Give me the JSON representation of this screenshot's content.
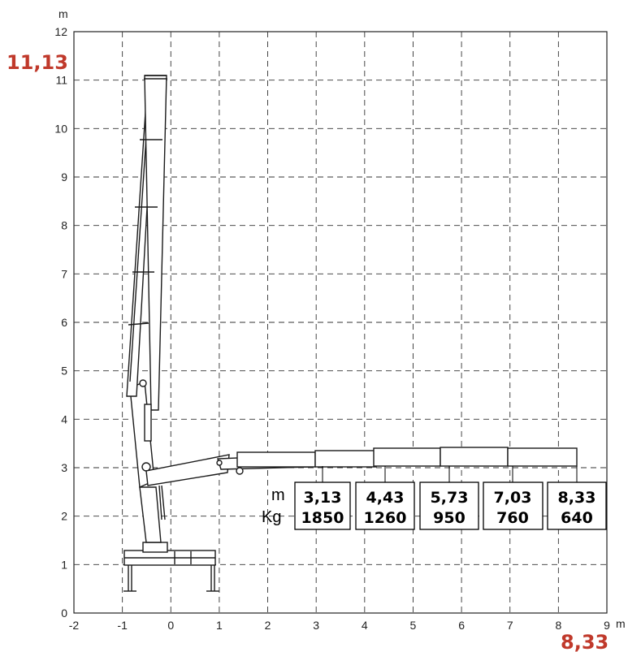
{
  "chart": {
    "x_unit": "m",
    "y_unit": "m",
    "x_ticks": [
      "-2",
      "-1",
      "0",
      "1",
      "2",
      "3",
      "4",
      "5",
      "6",
      "7",
      "8",
      "9"
    ],
    "y_ticks": [
      "0",
      "1",
      "2",
      "3",
      "4",
      "5",
      "6",
      "7",
      "8",
      "9",
      "10",
      "11",
      "12"
    ],
    "max_height_label": "11,13",
    "max_reach_label": "8,33",
    "accent_color": "#c0392b"
  },
  "load_table": {
    "row_label_reach": "m",
    "row_label_load": "Kg",
    "entries": [
      {
        "reach": "3,13",
        "load": "1850"
      },
      {
        "reach": "4,43",
        "load": "1260"
      },
      {
        "reach": "5,73",
        "load": "950"
      },
      {
        "reach": "7,03",
        "load": "760"
      },
      {
        "reach": "8,33",
        "load": "640"
      }
    ]
  },
  "chart_data": {
    "type": "scatter",
    "xlabel": "m",
    "ylabel": "m",
    "xlim": [
      -2,
      9
    ],
    "ylim": [
      0,
      12
    ],
    "grid": true,
    "annotations": [
      "11,13",
      "8,33"
    ],
    "series": [
      {
        "x": [
          3.13,
          4.43,
          5.73,
          7.03,
          8.33
        ],
        "y": [
          1850,
          1260,
          950,
          760,
          640
        ]
      }
    ]
  }
}
